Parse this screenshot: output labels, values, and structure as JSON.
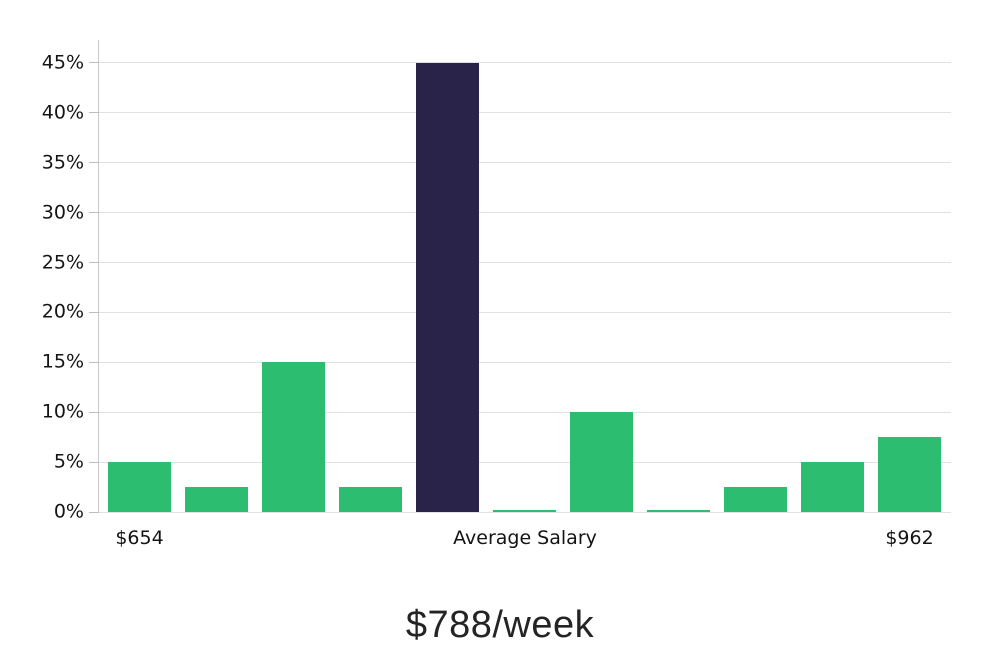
{
  "chart_data": {
    "type": "bar",
    "title": "$788/week",
    "values": [
      5,
      2.5,
      15,
      2.5,
      45,
      0.2,
      10,
      0.2,
      2.5,
      5,
      7.5
    ],
    "highlight_index": 4,
    "colors": {
      "bar": "#2dbd70",
      "highlight": "#292349",
      "grid": "#e1e1e1",
      "spine": "#c9c9c9",
      "tick_mark": "#bdbdbd",
      "text": "#141414",
      "title_text": "#242424"
    },
    "yticks": [
      0,
      5,
      10,
      15,
      20,
      25,
      30,
      35,
      40,
      45
    ],
    "ytick_labels": [
      "0%",
      "5%",
      "10%",
      "15%",
      "20%",
      "25%",
      "30%",
      "35%",
      "40%",
      "45%"
    ],
    "ylim": [
      0,
      47.3
    ],
    "xtick_labels": [
      {
        "label": "$654",
        "anchor": "first-bar"
      },
      {
        "label": "Average Salary",
        "anchor": "axis-center"
      },
      {
        "label": "$962",
        "anchor": "last-bar"
      }
    ],
    "grid": true,
    "legend": "none"
  }
}
